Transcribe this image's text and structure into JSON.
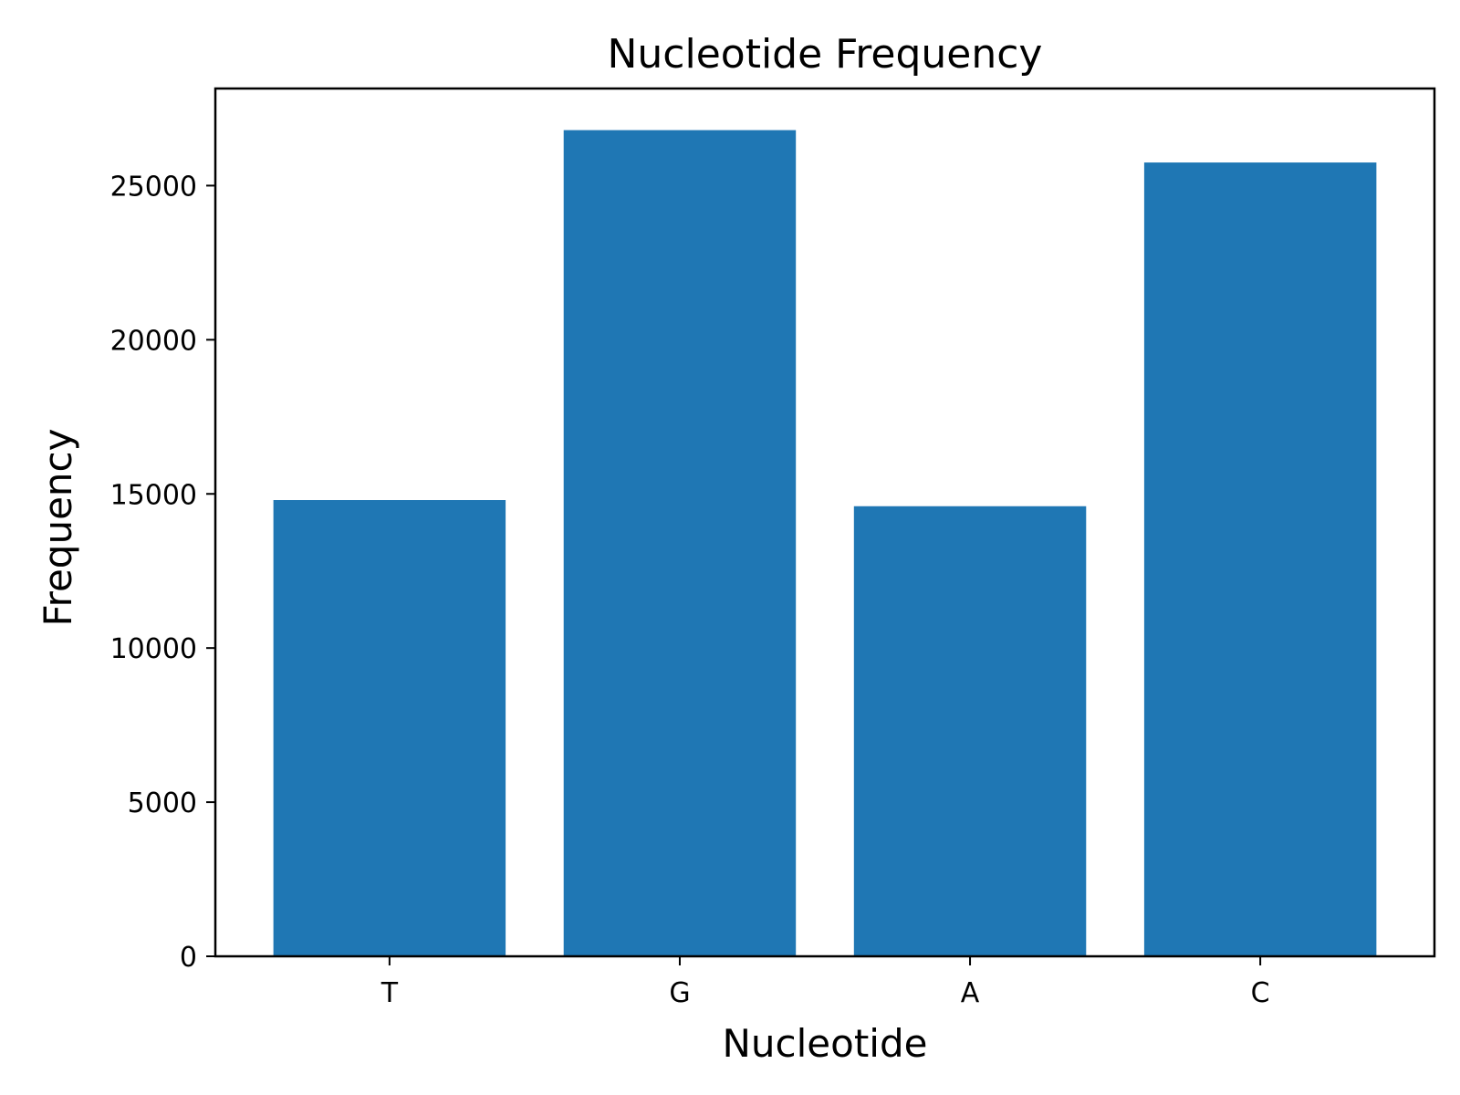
{
  "chart_data": {
    "type": "bar",
    "title": "Nucleotide Frequency",
    "xlabel": "Nucleotide",
    "ylabel": "Frequency",
    "categories": [
      "T",
      "G",
      "A",
      "C"
    ],
    "values": [
      14800,
      26800,
      14600,
      25750
    ],
    "ylim": [
      0,
      28150
    ],
    "yticks": [
      0,
      5000,
      10000,
      15000,
      20000,
      25000
    ],
    "ytick_labels": [
      "0",
      "5000",
      "10000",
      "15000",
      "20000",
      "25000"
    ],
    "bar_color": "#1f77b4",
    "grid": false,
    "legend": "none"
  }
}
